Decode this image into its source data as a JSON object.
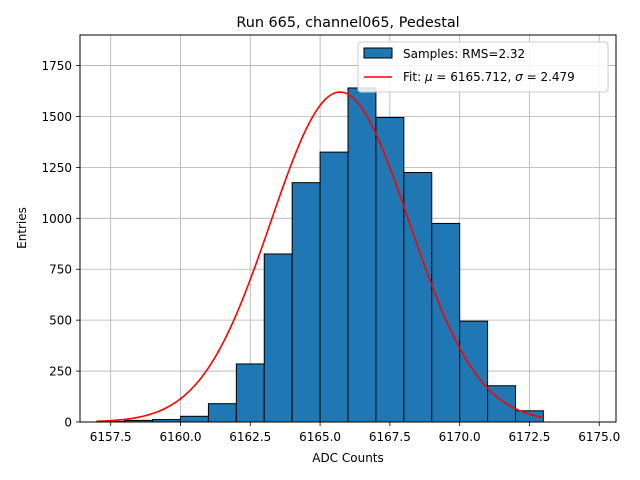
{
  "chart_data": {
    "type": "bar",
    "title": "Run 665, channel065, Pedestal",
    "xlabel": "ADC Counts",
    "ylabel": "Entries",
    "xlim": [
      156.5,
      6175.9
    ],
    "xlim_note": "",
    "xticks": [
      6157.5,
      6160.0,
      6162.5,
      6165.0,
      6167.5,
      6170.0,
      6172.5,
      6175.0
    ],
    "xtick_labels": [
      "6157.5",
      "6160.0",
      "6162.5",
      "6165.0",
      "6167.5",
      "6170.0",
      "6172.5",
      "6175.0"
    ],
    "ylim": [
      0,
      1900
    ],
    "yticks": [
      0,
      250,
      500,
      750,
      1000,
      1250,
      1500,
      1750
    ],
    "ytick_labels": [
      "0",
      "250",
      "500",
      "750",
      "1000",
      "1250",
      "1500",
      "1750"
    ],
    "grid": true,
    "legend_position": "top-right",
    "bin_edges": [
      6157,
      6158,
      6159,
      6160,
      6161,
      6162,
      6163,
      6164,
      6165,
      6166,
      6167,
      6168,
      6169,
      6170,
      6171,
      6172,
      6173
    ],
    "counts": [
      3,
      8,
      12,
      28,
      90,
      285,
      825,
      1175,
      1325,
      1640,
      1495,
      1225,
      975,
      495,
      178,
      55,
      30
    ],
    "series": [
      {
        "name": "Samples: RMS=2.32",
        "kind": "histogram",
        "color": "#1f77b4",
        "edgecolor": "#000000"
      },
      {
        "name": "Fit: μ = 6165.712, σ = 2.479",
        "kind": "line",
        "color": "#ff0000",
        "mu": 6165.712,
        "sigma": 2.479,
        "amplitude": 1620,
        "x_range": [
          6157,
          6173
        ]
      }
    ],
    "legend": {
      "samples_label": "Samples: RMS=2.32",
      "fit_label_prefix": "Fit: ",
      "fit_mu_symbol": "μ",
      "fit_mu_text": " = 6165.712, ",
      "fit_sigma_symbol": "σ",
      "fit_sigma_text": " = 2.479"
    }
  }
}
